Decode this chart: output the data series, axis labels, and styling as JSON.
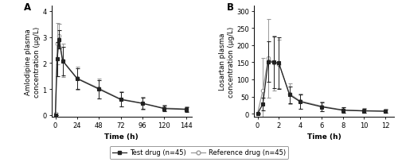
{
  "panel_A": {
    "label": "A",
    "ylabel": "Amlodipine plasma\nconcentration (μg/L)",
    "xlabel": "Time (h)",
    "xtick_labels": [
      "0",
      "24",
      "48",
      "72",
      "96",
      "120",
      "144"
    ],
    "xtick_positions": [
      0,
      24,
      48,
      72,
      96,
      120,
      144
    ],
    "xlim": [
      -4,
      150
    ],
    "ylim": [
      -0.05,
      4.2
    ],
    "yticks": [
      0,
      1,
      2,
      3,
      4
    ],
    "test": {
      "x": [
        0,
        2,
        4,
        8,
        24,
        48,
        72,
        96,
        120,
        144
      ],
      "y": [
        0.0,
        2.15,
        2.9,
        2.08,
        1.4,
        1.0,
        0.6,
        0.45,
        0.25,
        0.22
      ],
      "yerr": [
        0.0,
        0.65,
        0.35,
        0.55,
        0.4,
        0.35,
        0.28,
        0.22,
        0.1,
        0.09
      ]
    },
    "ref": {
      "x": [
        0,
        2,
        4,
        8,
        24,
        48,
        72,
        96,
        120,
        144
      ],
      "y": [
        0.05,
        2.75,
        3.05,
        2.1,
        1.42,
        1.03,
        0.62,
        0.46,
        0.27,
        0.24
      ],
      "yerr": [
        0.05,
        0.8,
        0.45,
        0.65,
        0.45,
        0.38,
        0.3,
        0.24,
        0.12,
        0.1
      ]
    }
  },
  "panel_B": {
    "label": "B",
    "ylabel": "Losartan plasma\nconcentration (μg/L)",
    "xlabel": "Time (h)",
    "xtick_labels": [
      "0",
      "2",
      "4",
      "6",
      "8",
      "10",
      "12"
    ],
    "xtick_positions": [
      0,
      2,
      4,
      6,
      8,
      10,
      12
    ],
    "xlim": [
      -0.3,
      12.8
    ],
    "ylim": [
      -8,
      315
    ],
    "yticks": [
      0,
      50,
      100,
      150,
      200,
      250,
      300
    ],
    "test": {
      "x": [
        0,
        0.5,
        1.0,
        1.5,
        2.0,
        3.0,
        4.0,
        6.0,
        8.0,
        10.0,
        12.0
      ],
      "y": [
        0.0,
        28.0,
        152.0,
        150.0,
        148.0,
        55.0,
        35.0,
        20.0,
        10.0,
        8.0,
        7.0
      ],
      "yerr": [
        0.0,
        18.0,
        60.0,
        75.0,
        75.0,
        25.0,
        20.0,
        12.0,
        8.0,
        6.0,
        5.0
      ]
    },
    "ref": {
      "x": [
        0,
        0.5,
        1.0,
        1.5,
        2.0,
        3.0,
        4.0,
        6.0,
        8.0,
        10.0,
        12.0
      ],
      "y": [
        0.5,
        68.0,
        162.0,
        148.0,
        145.0,
        58.0,
        37.0,
        22.0,
        11.0,
        9.0,
        8.0
      ],
      "yerr": [
        0.5,
        95.0,
        115.0,
        80.0,
        70.0,
        30.0,
        22.0,
        14.0,
        9.0,
        7.0,
        6.0
      ]
    }
  },
  "test_color": "#222222",
  "ref_color": "#999999",
  "test_marker": "s",
  "ref_marker": "o",
  "test_label": "Test drug (n=45)",
  "ref_label": "Reference drug (n=45)",
  "fontsize": 6.5,
  "legend_fontsize": 6.0
}
